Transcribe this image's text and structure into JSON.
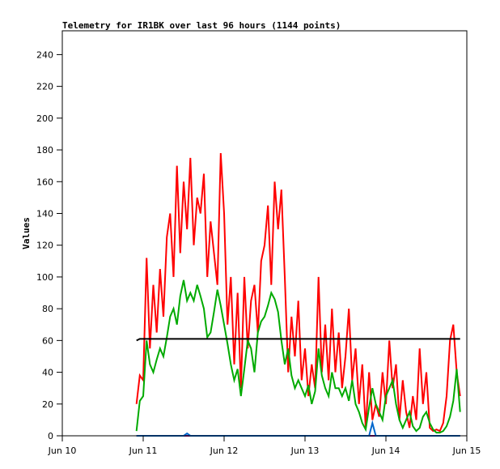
{
  "chart_data": {
    "type": "line",
    "title": "Telemetry for IR1BK over last 96 hours (1144 points)",
    "xlabel": "",
    "ylabel": "Values",
    "ylim": [
      0,
      255
    ],
    "yticks": [
      "0",
      "20",
      "40",
      "60",
      "80",
      "100",
      "120",
      "140",
      "160",
      "180",
      "200",
      "220",
      "240"
    ],
    "xticks": [
      "Jun 10",
      "Jun 11",
      "Jun 12",
      "Jun 13",
      "Jun 14",
      "Jun 15"
    ],
    "xlim": [
      "Jun 10 00:00",
      "Jun 15 00:00"
    ],
    "grid": false,
    "legend": "none",
    "x": [
      "Jun 10 22:00",
      "Jun 10 23:00",
      "Jun 11 00:00",
      "Jun 11 01:00",
      "Jun 11 02:00",
      "Jun 11 03:00",
      "Jun 11 04:00",
      "Jun 11 05:00",
      "Jun 11 06:00",
      "Jun 11 07:00",
      "Jun 11 08:00",
      "Jun 11 09:00",
      "Jun 11 10:00",
      "Jun 11 11:00",
      "Jun 11 12:00",
      "Jun 11 13:00",
      "Jun 11 14:00",
      "Jun 11 15:00",
      "Jun 11 16:00",
      "Jun 11 17:00",
      "Jun 11 18:00",
      "Jun 11 19:00",
      "Jun 11 20:00",
      "Jun 11 21:00",
      "Jun 11 22:00",
      "Jun 11 23:00",
      "Jun 12 00:00",
      "Jun 12 01:00",
      "Jun 12 02:00",
      "Jun 12 03:00",
      "Jun 12 04:00",
      "Jun 12 05:00",
      "Jun 12 06:00",
      "Jun 12 07:00",
      "Jun 12 08:00",
      "Jun 12 09:00",
      "Jun 12 10:00",
      "Jun 12 11:00",
      "Jun 12 12:00",
      "Jun 12 13:00",
      "Jun 12 14:00",
      "Jun 12 15:00",
      "Jun 12 16:00",
      "Jun 12 17:00",
      "Jun 12 18:00",
      "Jun 12 19:00",
      "Jun 12 20:00",
      "Jun 12 21:00",
      "Jun 12 22:00",
      "Jun 12 23:00",
      "Jun 13 00:00",
      "Jun 13 01:00",
      "Jun 13 02:00",
      "Jun 13 03:00",
      "Jun 13 04:00",
      "Jun 13 05:00",
      "Jun 13 06:00",
      "Jun 13 07:00",
      "Jun 13 08:00",
      "Jun 13 09:00",
      "Jun 13 10:00",
      "Jun 13 11:00",
      "Jun 13 12:00",
      "Jun 13 13:00",
      "Jun 13 14:00",
      "Jun 13 15:00",
      "Jun 13 16:00",
      "Jun 13 17:00",
      "Jun 13 18:00",
      "Jun 13 19:00",
      "Jun 13 20:00",
      "Jun 13 21:00",
      "Jun 13 22:00",
      "Jun 13 23:00",
      "Jun 14 00:00",
      "Jun 14 01:00",
      "Jun 14 02:00",
      "Jun 14 03:00",
      "Jun 14 04:00",
      "Jun 14 05:00",
      "Jun 14 06:00",
      "Jun 14 07:00",
      "Jun 14 08:00",
      "Jun 14 09:00",
      "Jun 14 10:00",
      "Jun 14 11:00",
      "Jun 14 12:00",
      "Jun 14 13:00",
      "Jun 14 14:00",
      "Jun 14 15:00",
      "Jun 14 16:00",
      "Jun 14 17:00",
      "Jun 14 18:00",
      "Jun 14 19:00",
      "Jun 14 20:00",
      "Jun 14 21:00",
      "Jun 14 22:00"
    ],
    "series": [
      {
        "color": "#ff0000",
        "values": [
          20,
          38,
          35,
          112,
          55,
          95,
          65,
          105,
          75,
          125,
          140,
          100,
          170,
          115,
          160,
          130,
          175,
          120,
          150,
          140,
          165,
          100,
          135,
          115,
          95,
          178,
          140,
          70,
          100,
          45,
          90,
          30,
          100,
          55,
          85,
          95,
          65,
          110,
          120,
          145,
          95,
          160,
          130,
          155,
          100,
          40,
          75,
          50,
          85,
          35,
          55,
          25,
          45,
          30,
          100,
          40,
          70,
          35,
          80,
          40,
          65,
          30,
          50,
          80,
          35,
          55,
          20,
          45,
          5,
          40,
          10,
          20,
          12,
          40,
          20,
          60,
          30,
          45,
          10,
          35,
          15,
          5,
          25,
          10,
          55,
          20,
          40,
          5,
          3,
          4,
          3,
          8,
          25,
          60,
          70,
          40,
          25
        ]
      },
      {
        "color": "#00aa00",
        "values": [
          3,
          22,
          25,
          60,
          45,
          40,
          48,
          55,
          50,
          62,
          75,
          80,
          70,
          88,
          98,
          85,
          90,
          85,
          95,
          88,
          80,
          62,
          65,
          78,
          92,
          82,
          70,
          58,
          45,
          35,
          42,
          25,
          42,
          60,
          55,
          40,
          65,
          72,
          75,
          82,
          90,
          86,
          78,
          60,
          45,
          55,
          38,
          30,
          35,
          30,
          25,
          32,
          20,
          28,
          55,
          38,
          30,
          25,
          40,
          30,
          30,
          25,
          30,
          22,
          35,
          20,
          15,
          8,
          4,
          18,
          30,
          20,
          15,
          10,
          25,
          30,
          35,
          20,
          10,
          5,
          10,
          15,
          6,
          3,
          5,
          12,
          15,
          8,
          4,
          2,
          2,
          3,
          6,
          12,
          22,
          42,
          15
        ]
      },
      {
        "color": "#000000",
        "values": [
          60,
          61,
          61,
          61,
          61,
          61,
          61,
          61,
          61,
          61,
          61,
          61,
          61,
          61,
          61,
          61,
          61,
          61,
          61,
          61,
          61,
          61,
          61,
          61,
          61,
          61,
          61,
          61,
          61,
          61,
          61,
          61,
          61,
          61,
          61,
          61,
          61,
          61,
          61,
          61,
          61,
          61,
          61,
          61,
          61,
          61,
          61,
          61,
          61,
          61,
          61,
          61,
          61,
          61,
          61,
          61,
          61,
          61,
          61,
          61,
          61,
          61,
          61,
          61,
          61,
          61,
          61,
          61,
          61,
          61,
          61,
          61,
          61,
          61,
          61,
          61,
          61,
          61,
          61,
          61,
          61,
          61,
          61,
          61,
          61,
          61,
          61,
          61,
          61,
          61,
          61,
          61,
          61,
          61,
          61,
          61,
          61
        ]
      },
      {
        "color": "#0066cc",
        "values": [
          0,
          0,
          0,
          0,
          0,
          0,
          0,
          0,
          0,
          0,
          0,
          0,
          0,
          0,
          0,
          1.5,
          0,
          0,
          0,
          0,
          0,
          0,
          0,
          0,
          0,
          0,
          0,
          0,
          0,
          0,
          0,
          0,
          0,
          0,
          0,
          0,
          0,
          0,
          0,
          0,
          0,
          0,
          0,
          0,
          0,
          0,
          0,
          0,
          0,
          0,
          0,
          0,
          0,
          0,
          0,
          0,
          0,
          0,
          0,
          0,
          0,
          0,
          0,
          0,
          0,
          0,
          0,
          0,
          0,
          0,
          8,
          0,
          0,
          0,
          0,
          0,
          0,
          0,
          0,
          0,
          0,
          0,
          0,
          0,
          0,
          0,
          0,
          0,
          0,
          0,
          0,
          0,
          0,
          0,
          0,
          0,
          0
        ]
      },
      {
        "color": "#800080",
        "values": [
          0,
          0,
          0,
          0,
          0,
          0,
          0,
          0,
          0,
          0,
          0,
          0,
          0,
          0,
          0,
          0,
          0,
          0,
          0,
          0,
          0,
          0,
          0,
          0,
          0,
          0,
          0,
          0,
          0,
          0,
          0,
          0,
          0,
          0,
          0,
          0,
          0,
          0,
          0,
          0,
          0,
          0,
          0,
          0,
          0,
          0,
          0,
          0,
          0,
          0,
          0,
          0,
          0,
          0,
          0,
          0,
          0,
          0,
          0,
          0,
          0,
          0,
          0,
          0,
          0,
          0,
          0,
          0,
          0,
          0,
          0,
          0,
          0,
          0,
          0,
          0,
          0,
          0,
          0,
          0,
          0,
          0,
          0,
          0,
          0,
          0,
          0,
          0,
          0,
          0,
          0,
          0,
          0,
          0,
          0,
          0,
          0
        ]
      }
    ]
  }
}
